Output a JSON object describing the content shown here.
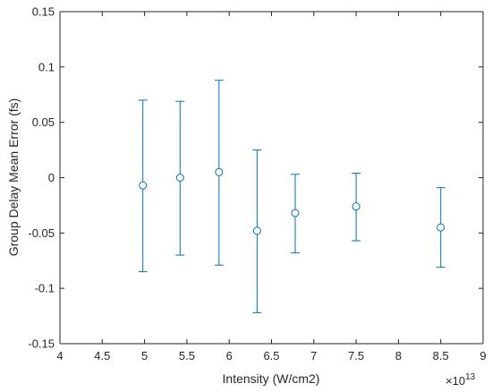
{
  "chart_data": {
    "type": "scatter",
    "title": "",
    "xlabel": "Intensity (W/cm2)",
    "ylabel": "Group Delay Mean Error (fs)",
    "x_exponent_label": "×10",
    "x_exponent_power": "13",
    "xlim": [
      4,
      9
    ],
    "ylim": [
      -0.15,
      0.15
    ],
    "x_ticks": [
      "4",
      "4.5",
      "5",
      "5.5",
      "6",
      "6.5",
      "7",
      "7.5",
      "8",
      "8.5",
      "9"
    ],
    "y_ticks": [
      "0.15",
      "0.1",
      "0.05",
      "0",
      "-0.05",
      "-0.1",
      "-0.15"
    ],
    "grid": false,
    "legend": "none",
    "series": [
      {
        "color": "#0072BD",
        "marker": "circle",
        "points": [
          {
            "x": 4.98,
            "y": -0.007,
            "low": -0.085,
            "high": 0.07
          },
          {
            "x": 5.42,
            "y": 0.0,
            "low": -0.07,
            "high": 0.069
          },
          {
            "x": 5.88,
            "y": 0.005,
            "low": -0.079,
            "high": 0.088
          },
          {
            "x": 6.33,
            "y": -0.048,
            "low": -0.122,
            "high": 0.025
          },
          {
            "x": 6.78,
            "y": -0.032,
            "low": -0.068,
            "high": 0.003
          },
          {
            "x": 7.5,
            "y": -0.026,
            "low": -0.057,
            "high": 0.004
          },
          {
            "x": 8.5,
            "y": -0.045,
            "low": -0.081,
            "high": -0.009
          }
        ]
      }
    ]
  }
}
